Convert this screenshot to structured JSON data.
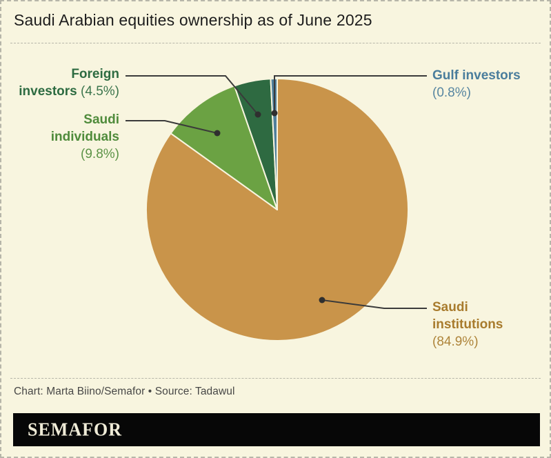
{
  "title": "Saudi Arabian equities ownership as of June 2025",
  "credit": "Chart: Marta Biino/Semafor • Source: Tadawul",
  "logo_text": "SEMAFOR",
  "background_color": "#f8f5df",
  "chart_data": {
    "type": "pie",
    "title": "Saudi Arabian equities ownership as of June 2025",
    "units": "percent",
    "start_angle_deg": 0,
    "direction": "clockwise",
    "legend_position": "callout-labels",
    "series": [
      {
        "name": "Saudi institutions",
        "value": 84.9,
        "color": "#c9944a"
      },
      {
        "name": "Saudi individuals",
        "value": 9.8,
        "color": "#6ba243"
      },
      {
        "name": "Foreign investors",
        "value": 4.5,
        "color": "#2e6a41"
      },
      {
        "name": "Gulf investors",
        "value": 0.8,
        "color": "#4f7f9b"
      }
    ]
  },
  "labels": {
    "foreign": {
      "line1": "Foreign",
      "line2": "investors",
      "pct": "(4.5%)",
      "color": "#2d6b41"
    },
    "individuals": {
      "line1": "Saudi",
      "line2": "individuals",
      "pct": "(9.8%)",
      "color": "#4f8b3b"
    },
    "gulf": {
      "line1": "Gulf investors",
      "pct": "(0.8%)",
      "color": "#4a7d9c"
    },
    "institutions": {
      "line1": "Saudi",
      "line2": "institutions",
      "pct": "(84.9%)",
      "color": "#a87b2d"
    }
  }
}
